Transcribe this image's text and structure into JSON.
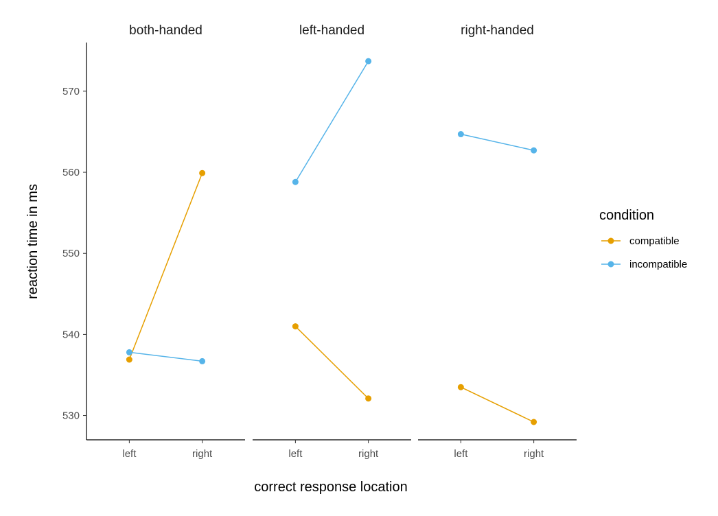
{
  "chart_data": {
    "type": "line",
    "facets": [
      "both-handed",
      "left-handed",
      "right-handed"
    ],
    "categories": [
      "left",
      "right"
    ],
    "xlabel": "correct response location",
    "ylabel": "reaction time in ms",
    "ylim": [
      527,
      576
    ],
    "yticks": [
      530,
      540,
      550,
      560,
      570
    ],
    "legend": {
      "title": "condition",
      "position": "right"
    },
    "grid": false,
    "series": [
      {
        "name": "compatible",
        "color": "#E69F00",
        "values": {
          "both-handed": [
            536.9,
            559.9
          ],
          "left-handed": [
            541.0,
            532.1
          ],
          "right-handed": [
            533.5,
            529.2
          ]
        }
      },
      {
        "name": "incompatible",
        "color": "#56B4E9",
        "values": {
          "both-handed": [
            537.8,
            536.7
          ],
          "left-handed": [
            558.8,
            573.7
          ],
          "right-handed": [
            564.7,
            562.7
          ]
        }
      }
    ]
  }
}
